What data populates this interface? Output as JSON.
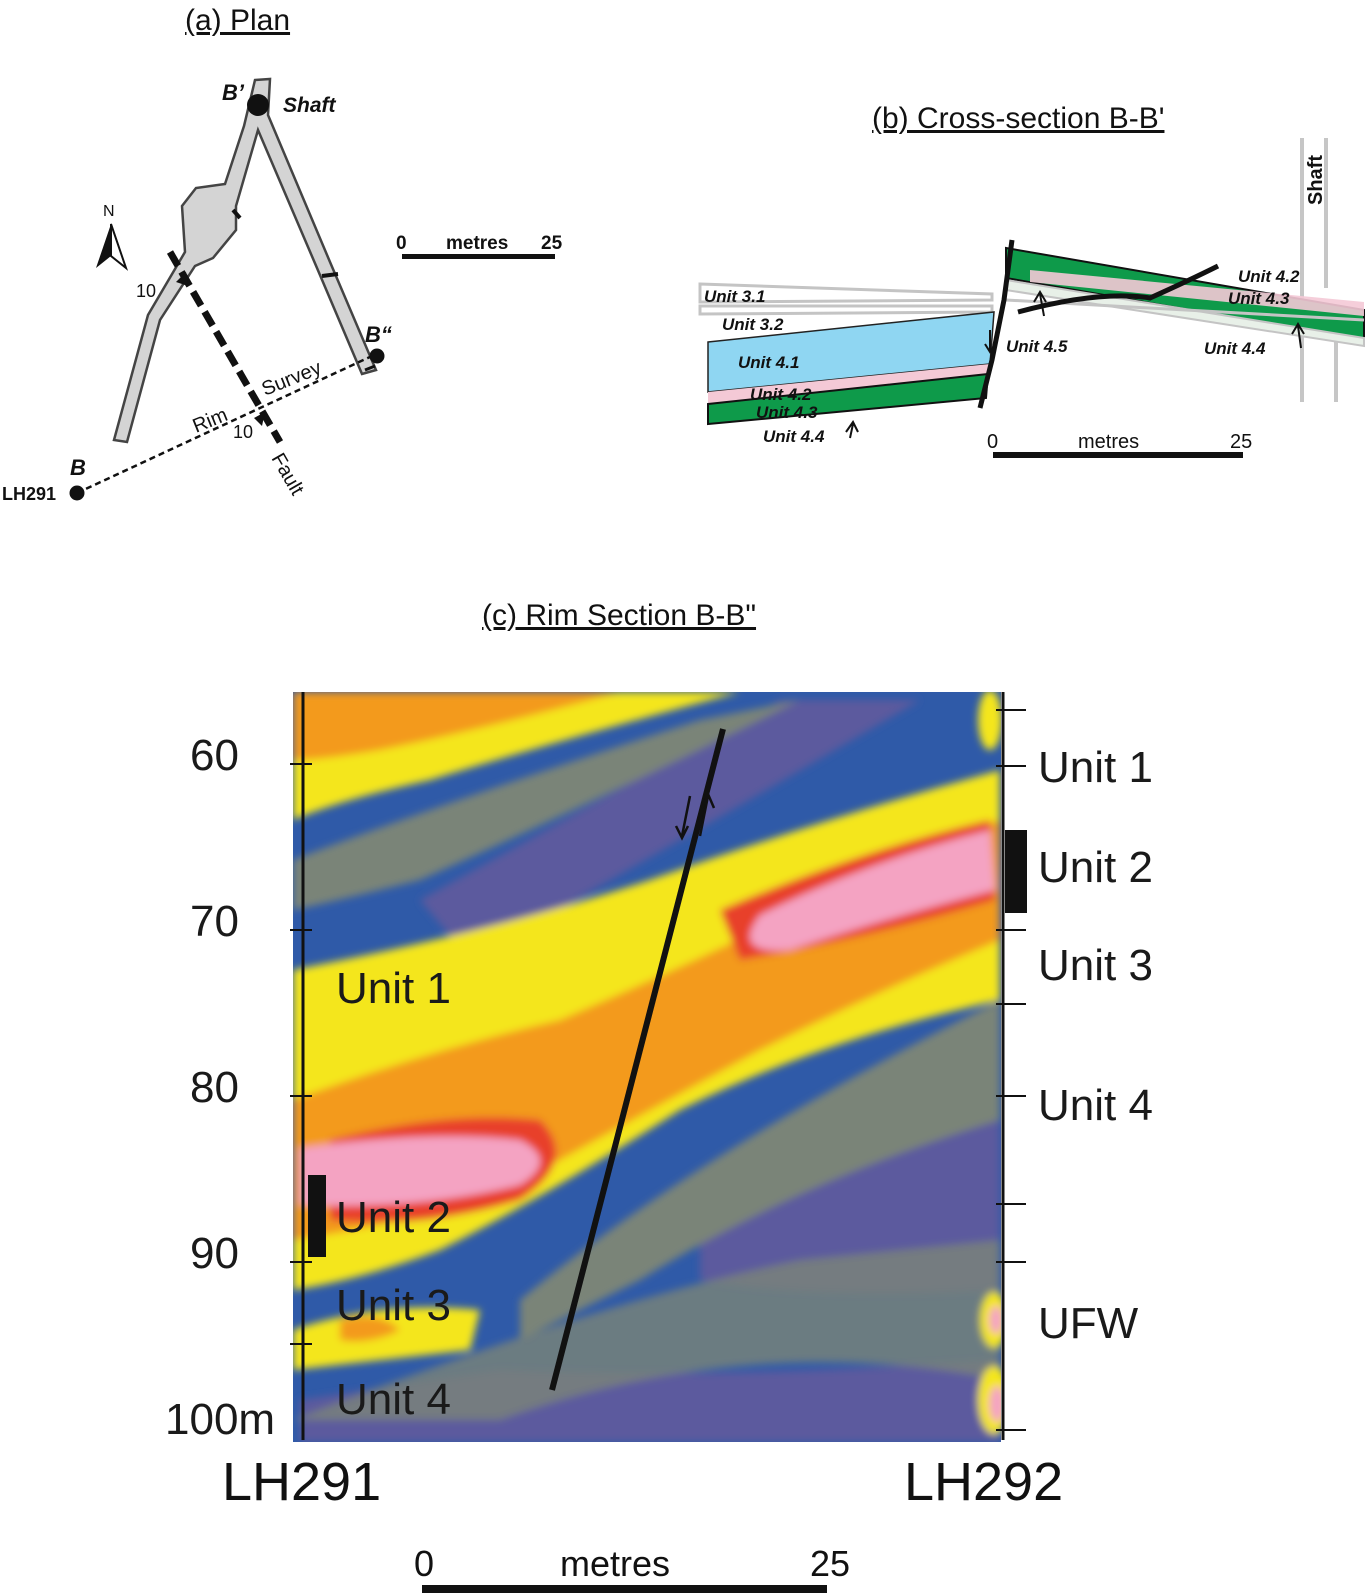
{
  "plan": {
    "title": "(a)  Plan",
    "north": "N",
    "labels": {
      "b_prime": "B’",
      "shaft": "Shaft",
      "b_dprime": "B“",
      "b": "B",
      "lh291": "LH291",
      "rim": "Rim",
      "survey": "Survey",
      "fault": "Fault",
      "dip_a": "10",
      "dip_b": "10"
    },
    "scale": {
      "start": "0",
      "unit": "metres",
      "end": "25"
    }
  },
  "cross_section": {
    "title": "(b)  Cross-section B-B'",
    "shaft": "Shaft",
    "units": {
      "u31": "Unit 3.1",
      "u32": "Unit 3.2",
      "u41": "Unit 4.1",
      "u42_left": "Unit 4.2",
      "u43_left": "Unit 4.3",
      "u44_left": "Unit 4.4",
      "u45": "Unit 4.5",
      "u42_right": "Unit 4.2",
      "u43_right": "Unit 4.3",
      "u44_right": "Unit 4.4"
    },
    "scale": {
      "start": "0",
      "unit": "metres",
      "end": "25"
    },
    "colors": {
      "unit_4_1": "#8fd6f2",
      "unit_4_3": "#0e9a4a",
      "unit_4_2": "#f4c9d6",
      "unit_3": "#c9c9c9"
    }
  },
  "rim_section": {
    "title": "(c)  Rim Section B-B\"",
    "depth_ticks": [
      "60",
      "70",
      "80",
      "90",
      "100m"
    ],
    "left_units": [
      "Unit 1",
      "Unit 2",
      "Unit 3",
      "Unit 4"
    ],
    "right_units": [
      "Unit 1",
      "Unit 2",
      "Unit 3",
      "Unit 4",
      "UFW"
    ],
    "left_borehole": "LH291",
    "right_borehole": "LH292",
    "scale": {
      "start": "0",
      "unit": "metres",
      "end": "25"
    },
    "colors": {
      "high": "#f4a3c2",
      "red": "#e8402a",
      "orange": "#f39a1c",
      "yellow": "#f4e61e",
      "grey": "#7a8478",
      "blue": "#2f5aa8",
      "purple": "#5b5a9e"
    }
  }
}
